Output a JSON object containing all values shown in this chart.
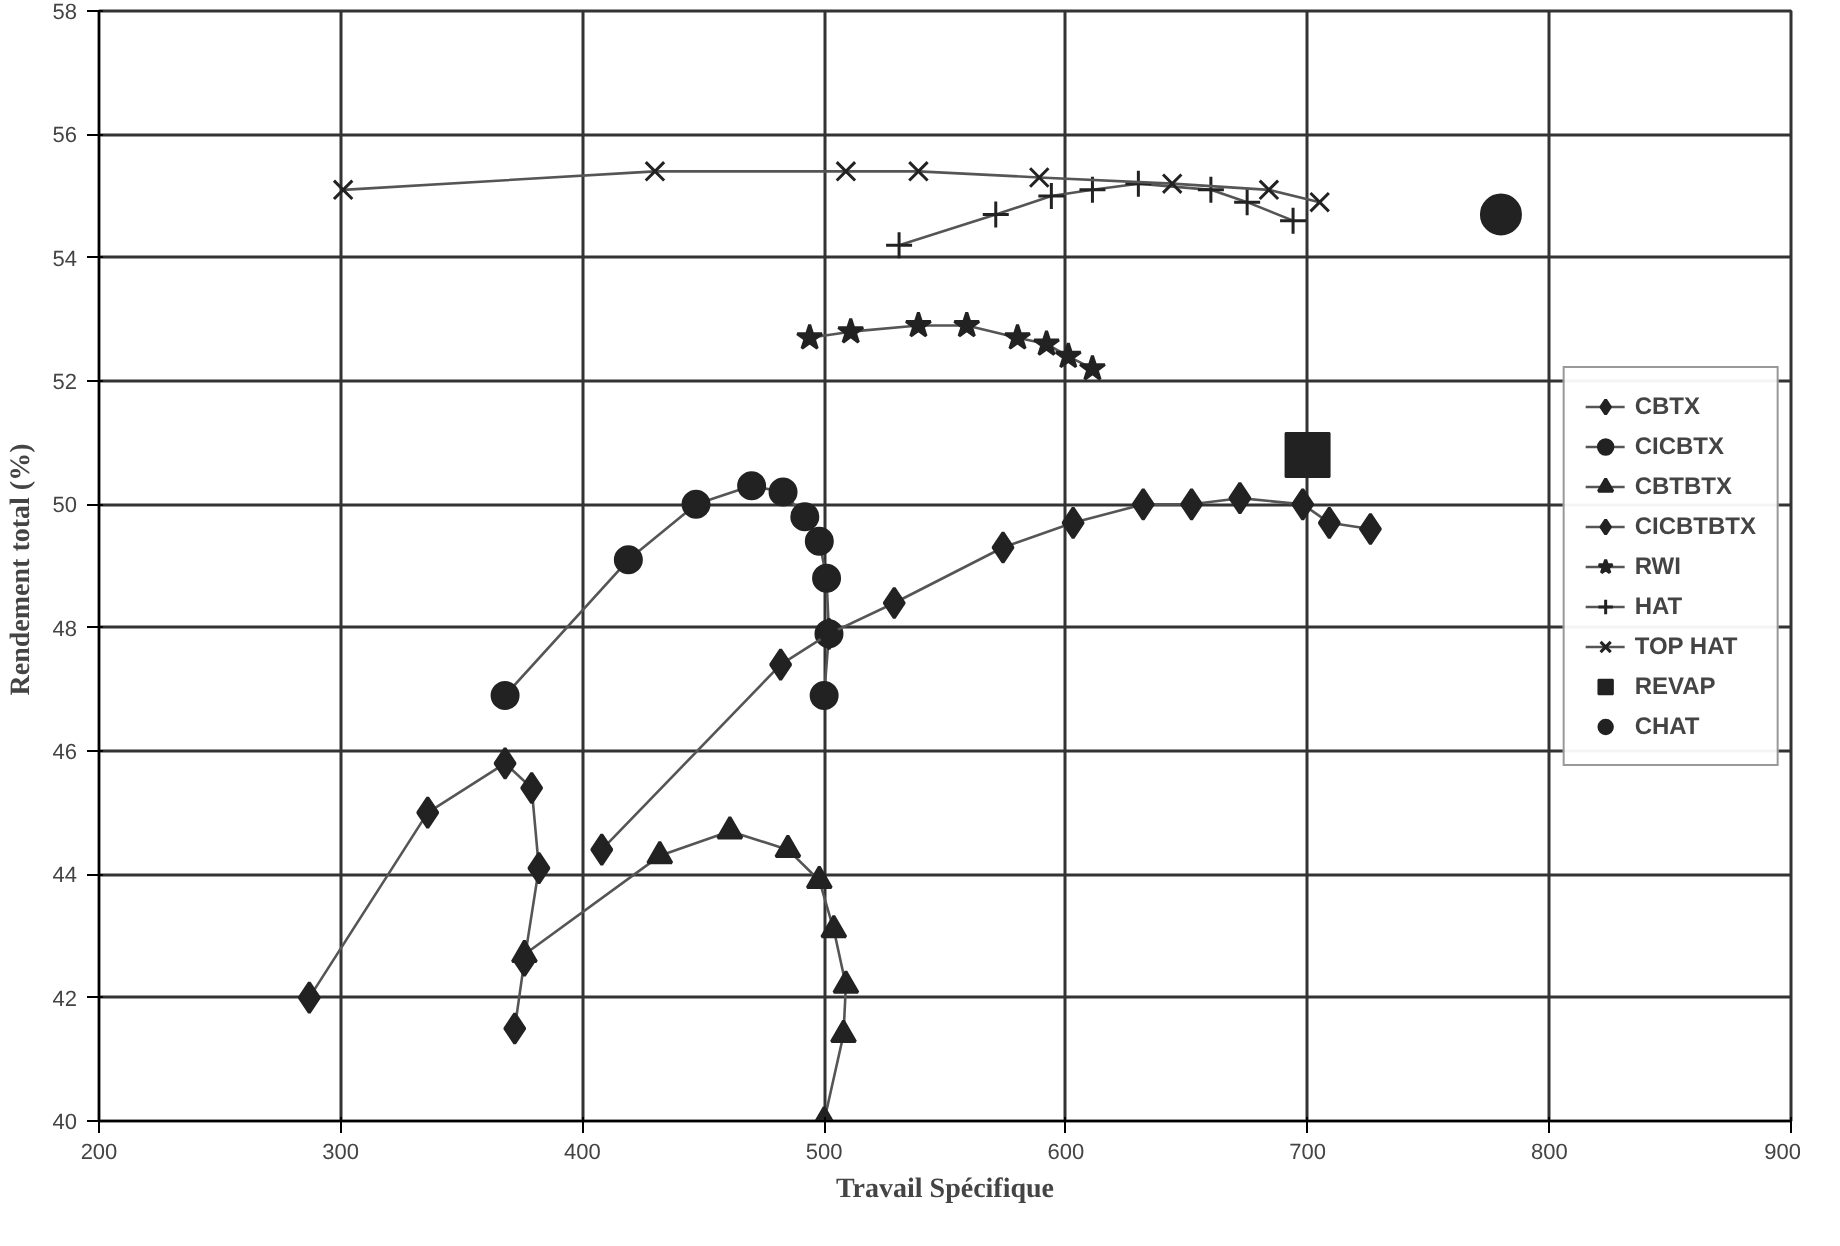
{
  "chart_data": {
    "type": "line",
    "xlabel": "Travail Spécifique",
    "ylabel": "Rendement  total (%)",
    "xlim": [
      200,
      900
    ],
    "ylim": [
      40,
      58
    ],
    "xticks": [
      200,
      300,
      400,
      500,
      600,
      700,
      800,
      900
    ],
    "yticks": [
      40,
      42,
      44,
      46,
      48,
      50,
      52,
      54,
      56,
      58
    ],
    "grid": true,
    "legend": "right",
    "series": [
      {
        "name": "CBTX",
        "color": "#222222",
        "marker": "diamond",
        "x": [
          287,
          336,
          368,
          379,
          382,
          376,
          372
        ],
        "values": [
          42.0,
          45.0,
          45.8,
          45.4,
          44.1,
          42.6,
          41.5
        ]
      },
      {
        "name": "CICBTX",
        "color": "#222222",
        "marker": "circle",
        "x": [
          368,
          419,
          447,
          470,
          483,
          492,
          498,
          501,
          502,
          500
        ],
        "values": [
          46.9,
          49.1,
          50.0,
          50.3,
          50.2,
          49.8,
          49.4,
          48.8,
          47.9,
          46.9
        ]
      },
      {
        "name": "CBTBTX",
        "color": "#222222",
        "marker": "triangle",
        "x": [
          376,
          432,
          461,
          485,
          498,
          504,
          509,
          508,
          500
        ],
        "values": [
          42.7,
          44.3,
          44.7,
          44.4,
          43.9,
          43.1,
          42.2,
          41.4,
          40.0
        ]
      },
      {
        "name": "CICBTBTX",
        "color": "#222222",
        "marker": "diamond",
        "x": [
          408,
          482,
          502,
          529,
          574,
          603,
          632,
          652,
          672,
          698,
          709,
          726
        ],
        "values": [
          44.4,
          47.4,
          47.9,
          48.4,
          49.3,
          49.7,
          50.0,
          50.0,
          50.1,
          50.0,
          49.7,
          49.6
        ]
      },
      {
        "name": "RWI",
        "color": "#222222",
        "marker": "star",
        "x": [
          494,
          511,
          539,
          559,
          580,
          592,
          601,
          611
        ],
        "values": [
          52.7,
          52.8,
          52.9,
          52.9,
          52.7,
          52.6,
          52.4,
          52.2
        ]
      },
      {
        "name": "HAT",
        "color": "#222222",
        "marker": "cross",
        "x": [
          531,
          571,
          594,
          611,
          630,
          660,
          675,
          694
        ],
        "values": [
          54.2,
          54.7,
          55.0,
          55.1,
          55.2,
          55.1,
          54.9,
          54.6
        ]
      },
      {
        "name": "TOP HAT",
        "color": "#222222",
        "marker": "x",
        "x": [
          301,
          430,
          509,
          539,
          589,
          644,
          684,
          705
        ],
        "values": [
          55.1,
          55.4,
          55.4,
          55.4,
          55.3,
          55.2,
          55.1,
          54.9
        ]
      },
      {
        "name": "REVAP",
        "type": "scatter",
        "color": "#222222",
        "marker": "square",
        "x": [
          700
        ],
        "values": [
          50.8
        ]
      },
      {
        "name": "CHAT",
        "type": "scatter",
        "color": "#222222",
        "marker": "circle",
        "x": [
          780
        ],
        "values": [
          54.7
        ]
      }
    ]
  }
}
